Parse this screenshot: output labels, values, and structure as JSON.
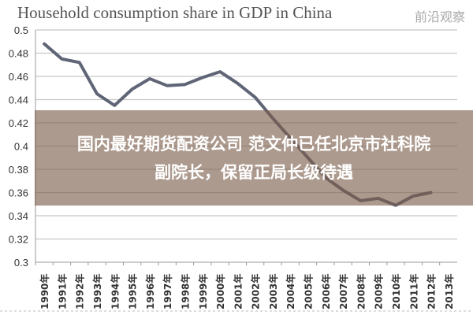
{
  "chart_data": {
    "type": "line",
    "title": "Household consumption share in GDP in China",
    "xlabel": "",
    "ylabel": "",
    "ylim": [
      0.3,
      0.5
    ],
    "yticks": [
      "0.3",
      "0.32",
      "0.34",
      "0.36",
      "0.38",
      "0.4",
      "0.42",
      "0.44",
      "0.46",
      "0.48",
      "0.5"
    ],
    "categories": [
      "1990年",
      "1991年",
      "1992年",
      "1993年",
      "1994年",
      "1995年",
      "1996年",
      "1997年",
      "1998年",
      "1999年",
      "2000年",
      "2001年",
      "2002年",
      "2003年",
      "2004年",
      "2005年",
      "2006年",
      "2007年",
      "2008年",
      "2009年",
      "2010年",
      "2011年",
      "2012年",
      "2013年"
    ],
    "series": [
      {
        "name": "Household consumption share",
        "color": "#5f6577",
        "values": [
          0.488,
          0.475,
          0.472,
          0.445,
          0.435,
          0.449,
          0.458,
          0.452,
          0.453,
          0.459,
          0.464,
          0.454,
          0.442,
          0.424,
          0.407,
          0.39,
          0.373,
          0.362,
          0.353,
          0.355,
          0.349,
          0.357,
          0.36,
          null
        ]
      }
    ],
    "grid": true,
    "legend": "none"
  },
  "banner": {
    "line1": "国内最好期货配资公司 范文仲已任北京市社科院",
    "line2": "副院长，保留正局长级待遇"
  },
  "watermark": "前沿观察"
}
